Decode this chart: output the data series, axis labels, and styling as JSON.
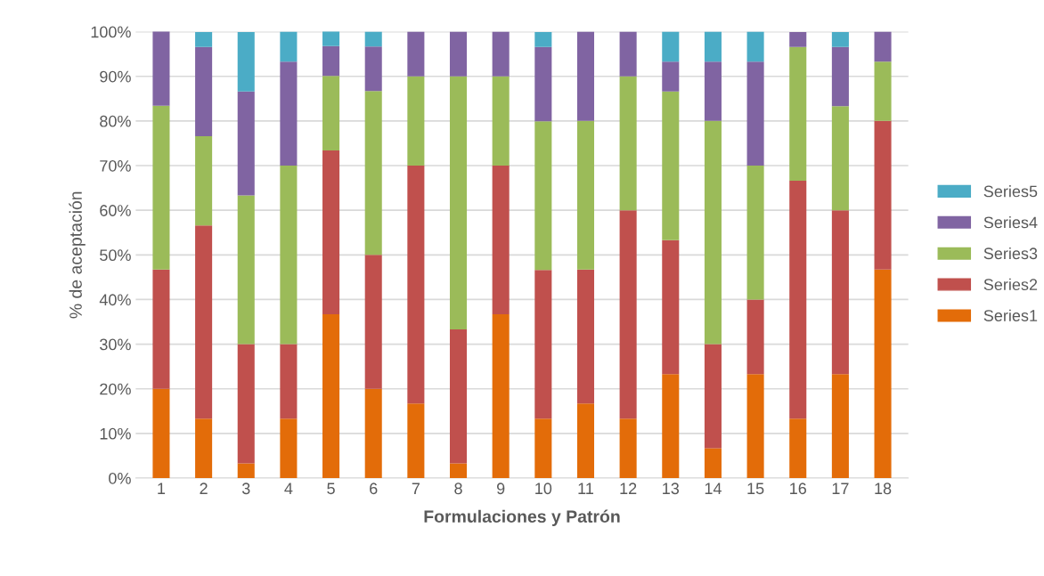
{
  "chart_data": {
    "type": "bar",
    "stacked": true,
    "xlabel": "Formulaciones y Patrón",
    "ylabel": "% de aceptación",
    "categories": [
      "1",
      "2",
      "3",
      "4",
      "5",
      "6",
      "7",
      "8",
      "9",
      "10",
      "11",
      "12",
      "13",
      "14",
      "15",
      "16",
      "17",
      "18"
    ],
    "series": [
      {
        "name": "Series1",
        "color": "#e36c09",
        "values": [
          20.0,
          13.3,
          3.3,
          13.3,
          36.7,
          20.0,
          16.7,
          3.3,
          36.7,
          13.3,
          16.7,
          13.3,
          23.3,
          6.7,
          23.3,
          13.3,
          23.3,
          46.7
        ]
      },
      {
        "name": "Series2",
        "color": "#c0504d",
        "values": [
          26.7,
          43.3,
          26.7,
          16.7,
          36.7,
          30.0,
          53.3,
          30.0,
          33.3,
          33.3,
          30.0,
          46.7,
          30.0,
          23.3,
          16.7,
          53.3,
          36.7,
          33.3
        ]
      },
      {
        "name": "Series3",
        "color": "#9bbb59",
        "values": [
          36.7,
          20.0,
          33.3,
          40.0,
          16.7,
          36.7,
          20.0,
          56.7,
          20.0,
          33.3,
          33.3,
          30.0,
          33.3,
          50.0,
          30.0,
          30.0,
          23.3,
          13.3
        ]
      },
      {
        "name": "Series4",
        "color": "#8064a2",
        "values": [
          16.7,
          20.0,
          23.3,
          23.3,
          6.7,
          10.0,
          10.0,
          10.0,
          10.0,
          16.7,
          20.0,
          10.0,
          6.7,
          13.3,
          23.3,
          3.3,
          13.3,
          6.7
        ]
      },
      {
        "name": "Series5",
        "color": "#4bacc6",
        "values": [
          0,
          3.3,
          13.3,
          6.7,
          3.3,
          3.3,
          0,
          0,
          0,
          3.3,
          0,
          0,
          6.7,
          6.7,
          6.7,
          0,
          3.3,
          0
        ]
      }
    ],
    "ylim": [
      0,
      100
    ],
    "yticks": [
      {
        "value": 0,
        "label": "0%"
      },
      {
        "value": 10,
        "label": "10%"
      },
      {
        "value": 20,
        "label": "20%"
      },
      {
        "value": 30,
        "label": "30%"
      },
      {
        "value": 40,
        "label": "40%"
      },
      {
        "value": 50,
        "label": "50%"
      },
      {
        "value": 60,
        "label": "60%"
      },
      {
        "value": 70,
        "label": "70%"
      },
      {
        "value": 80,
        "label": "80%"
      },
      {
        "value": 90,
        "label": "90%"
      },
      {
        "value": 100,
        "label": "100%"
      }
    ],
    "grid": "y",
    "legend": "right"
  }
}
